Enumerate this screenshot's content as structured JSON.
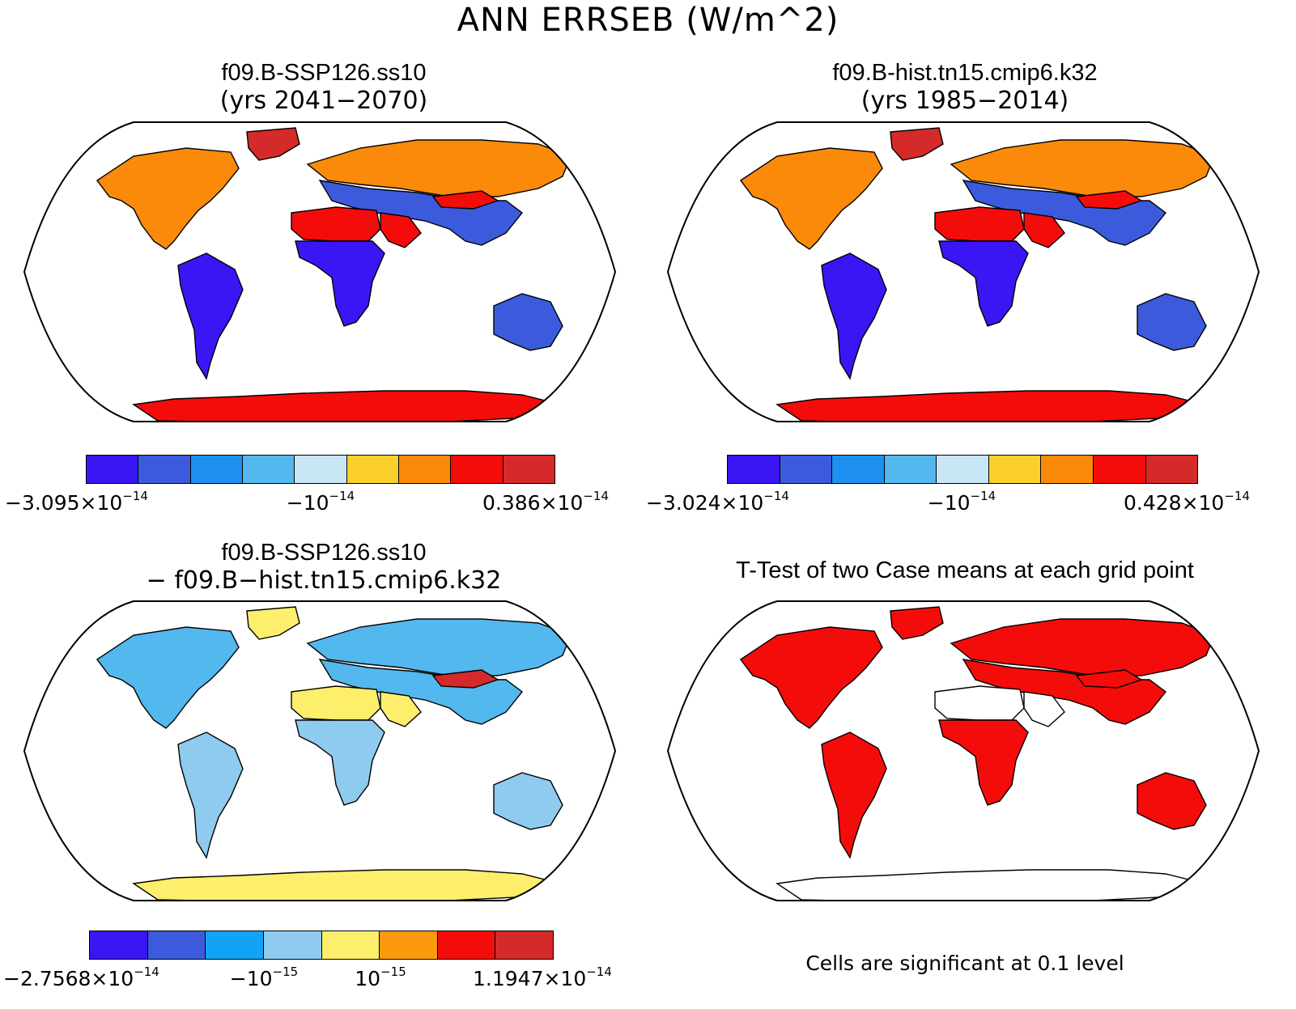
{
  "title": "ANN ERRSEB (W/m^2)",
  "panels": [
    {
      "title": "f09.B-SSP126.ss10",
      "subtitle": "(yrs 2041−2070)",
      "colorbar": {
        "colors": [
          "#3a16f5",
          "#3b5bdc",
          "#1e90f0",
          "#52b8ee",
          "#c8e6f6",
          "#fcd02a",
          "#fb8a0b",
          "#f40c0b",
          "#d42a2a"
        ],
        "ticks": [
          {
            "mant": "−3.095×10",
            "exp": "−14"
          },
          {
            "mant": "−10",
            "exp": "−14"
          },
          {
            "mant": "0.386×10",
            "exp": "−14"
          }
        ]
      }
    },
    {
      "title": "f09.B-hist.tn15.cmip6.k32",
      "subtitle": "(yrs 1985−2014)",
      "colorbar": {
        "colors": [
          "#3a16f5",
          "#3b5bdc",
          "#1e90f0",
          "#52b8ee",
          "#c8e6f6",
          "#fcd02a",
          "#fb8a0b",
          "#f40c0b",
          "#d42a2a"
        ],
        "ticks": [
          {
            "mant": "−3.024×10",
            "exp": "−14"
          },
          {
            "mant": "−10",
            "exp": "−14"
          },
          {
            "mant": "0.428×10",
            "exp": "−14"
          }
        ]
      }
    },
    {
      "title": "f09.B-SSP126.ss10",
      "subtitle": "− f09.B−hist.tn15.cmip6.k32",
      "colorbar": {
        "colors": [
          "#3a16f5",
          "#3b5bdc",
          "#12a4f4",
          "#8ecbee",
          "#fdee6b",
          "#fb9a0f",
          "#f40c0b",
          "#d42a2a"
        ],
        "ticks": [
          {
            "mant": "−2.7568×10",
            "exp": "−14"
          },
          {
            "mant": "−10",
            "exp": "−15"
          },
          {
            "mant": "10",
            "exp": "−15"
          },
          {
            "mant": "1.1947×10",
            "exp": "−14"
          }
        ]
      }
    },
    {
      "title": "T-Test of two Case means at each grid point",
      "footnote": "Cells are significant at 0.1 level"
    }
  ],
  "map_fills": {
    "north_america": [
      "#fb8a0b",
      "#fb8a0b",
      "#52b8ee",
      "#f40c0b"
    ],
    "south_america": [
      "#3a16f5",
      "#3a16f5",
      "#8ecbee",
      "#f40c0b"
    ],
    "greenland": [
      "#d42a2a",
      "#d42a2a",
      "#fdee6b",
      "#f40c0b"
    ],
    "eurasia_north": [
      "#fb8a0b",
      "#fb8a0b",
      "#52b8ee",
      "#f40c0b"
    ],
    "eurasia_south": [
      "#3b5bdc",
      "#3b5bdc",
      "#52b8ee",
      "#f40c0b"
    ],
    "sahara": [
      "#f40c0b",
      "#f40c0b",
      "#fdee6b",
      "#ffffff"
    ],
    "africa": [
      "#3a16f5",
      "#3a16f5",
      "#8ecbee",
      "#f40c0b"
    ],
    "australia": [
      "#3b5bdc",
      "#3b5bdc",
      "#8ecbee",
      "#f40c0b"
    ],
    "antarctica": [
      "#f40c0b",
      "#f40c0b",
      "#fdee6b",
      "#ffffff"
    ],
    "mideast": [
      "#f40c0b",
      "#f40c0b",
      "#fdee6b",
      "#ffffff"
    ],
    "himalaya": [
      "#f40c0b",
      "#f40c0b",
      "#d42a2a",
      "#f40c0b"
    ]
  }
}
